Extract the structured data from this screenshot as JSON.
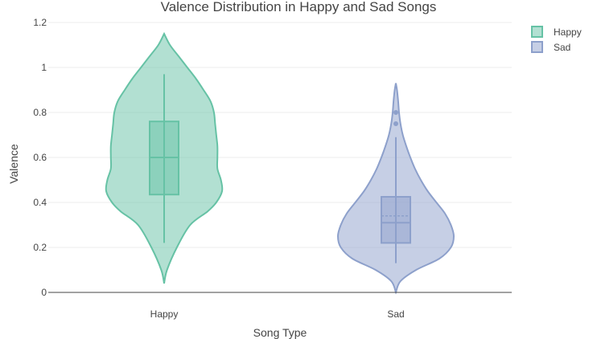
{
  "chart_data": {
    "type": "violin",
    "title": "Valence Distribution in Happy and Sad Songs",
    "xlabel": "Song Type",
    "ylabel": "Valence",
    "ylim": [
      0,
      1.2
    ],
    "yticks": [
      0,
      0.2,
      0.4,
      0.6,
      0.8,
      1,
      1.2
    ],
    "categories": [
      "Happy",
      "Sad"
    ],
    "grid": true,
    "legend_position": "top-right",
    "series": [
      {
        "name": "Happy",
        "color": "#66c2a5",
        "min": 0.22,
        "q1": 0.435,
        "median": 0.6,
        "mean": 0.6,
        "q3": 0.76,
        "max": 0.97,
        "outliers": [],
        "kde_range": [
          0.04,
          1.15
        ],
        "density": [
          [
            0.04,
            0.0
          ],
          [
            0.1,
            0.05
          ],
          [
            0.2,
            0.22
          ],
          [
            0.3,
            0.45
          ],
          [
            0.36,
            0.75
          ],
          [
            0.4,
            0.9
          ],
          [
            0.45,
            1.0
          ],
          [
            0.5,
            0.98
          ],
          [
            0.55,
            0.92
          ],
          [
            0.6,
            0.92
          ],
          [
            0.65,
            0.92
          ],
          [
            0.7,
            0.9
          ],
          [
            0.75,
            0.88
          ],
          [
            0.8,
            0.86
          ],
          [
            0.85,
            0.8
          ],
          [
            0.9,
            0.68
          ],
          [
            0.95,
            0.55
          ],
          [
            1.0,
            0.4
          ],
          [
            1.05,
            0.25
          ],
          [
            1.1,
            0.1
          ],
          [
            1.15,
            0.0
          ]
        ]
      },
      {
        "name": "Sad",
        "color": "#8da0cb",
        "min": 0.13,
        "q1": 0.22,
        "median": 0.31,
        "mean": 0.34,
        "q3": 0.425,
        "max": 0.69,
        "outliers": [
          0.75,
          0.8
        ],
        "kde_range": [
          0.0,
          0.93
        ],
        "density": [
          [
            0.0,
            0.0
          ],
          [
            0.05,
            0.08
          ],
          [
            0.1,
            0.35
          ],
          [
            0.15,
            0.75
          ],
          [
            0.2,
            0.95
          ],
          [
            0.25,
            1.0
          ],
          [
            0.3,
            0.95
          ],
          [
            0.35,
            0.85
          ],
          [
            0.4,
            0.7
          ],
          [
            0.45,
            0.55
          ],
          [
            0.5,
            0.43
          ],
          [
            0.55,
            0.33
          ],
          [
            0.6,
            0.25
          ],
          [
            0.65,
            0.18
          ],
          [
            0.7,
            0.12
          ],
          [
            0.75,
            0.08
          ],
          [
            0.8,
            0.055
          ],
          [
            0.85,
            0.04
          ],
          [
            0.9,
            0.02
          ],
          [
            0.93,
            0.0
          ]
        ]
      }
    ]
  }
}
